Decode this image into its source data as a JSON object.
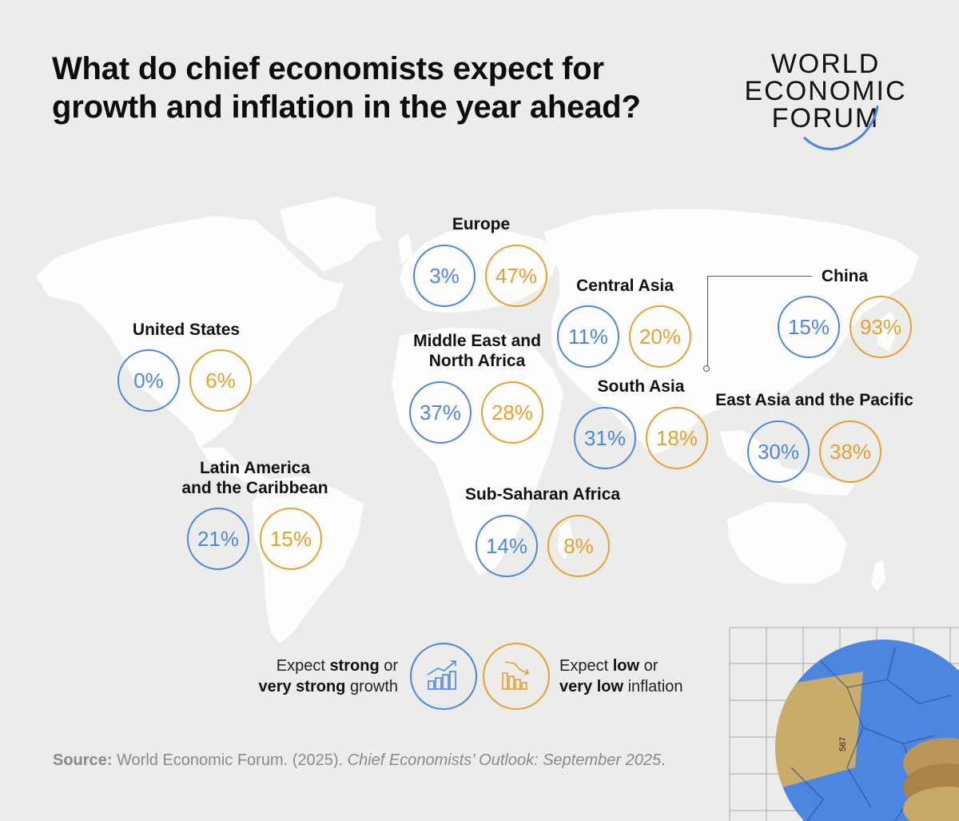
{
  "title": {
    "line1": "What do chief economists expect for",
    "line2": "growth and inflation in the year ahead?"
  },
  "logo": {
    "line1": "WORLD",
    "line2": "ECONOMIC",
    "line3": "FORUM",
    "arc_color": "#4d86e0"
  },
  "colors": {
    "growth": "#4d86e0",
    "inflation": "#e6a02f",
    "map_land": "#ffffff",
    "background": "#ececea"
  },
  "regions": [
    {
      "id": "united-states",
      "label_lines": [
        "United States"
      ],
      "growth": "0%",
      "inflation": "6%"
    },
    {
      "id": "latin-america",
      "label_lines": [
        "Latin America",
        "and the Caribbean"
      ],
      "growth": "21%",
      "inflation": "15%"
    },
    {
      "id": "europe",
      "label_lines": [
        "Europe"
      ],
      "growth": "3%",
      "inflation": "47%"
    },
    {
      "id": "mena",
      "label_lines": [
        "Middle East and",
        "North Africa"
      ],
      "growth": "37%",
      "inflation": "28%"
    },
    {
      "id": "sub-saharan-africa",
      "label_lines": [
        "Sub-Saharan Africa"
      ],
      "growth": "14%",
      "inflation": "8%"
    },
    {
      "id": "central-asia",
      "label_lines": [
        "Central Asia"
      ],
      "growth": "11%",
      "inflation": "20%"
    },
    {
      "id": "south-asia",
      "label_lines": [
        "South Asia"
      ],
      "growth": "31%",
      "inflation": "18%"
    },
    {
      "id": "china",
      "label_lines": [
        "China"
      ],
      "growth": "15%",
      "inflation": "93%"
    },
    {
      "id": "east-asia-pacific",
      "label_lines": [
        "East Asia and the Pacific"
      ],
      "growth": "30%",
      "inflation": "38%"
    }
  ],
  "legend": {
    "growth": {
      "pre": "Expect ",
      "bold1": "strong",
      "mid": " or",
      "bold2": "very strong",
      "post": " growth",
      "icon": "rising-bar-chart-icon"
    },
    "inflation": {
      "pre": "Expect ",
      "bold1": "low",
      "mid": " or",
      "bold2": "very low",
      "post": " inflation",
      "icon": "falling-bar-chart-icon"
    }
  },
  "source": {
    "label": "Source:",
    "text": " World Economic Forum. (2025). ",
    "italic": "Chief Economists’ Outlook: September 2025",
    "end": "."
  },
  "decor": {
    "image_number": "567"
  }
}
